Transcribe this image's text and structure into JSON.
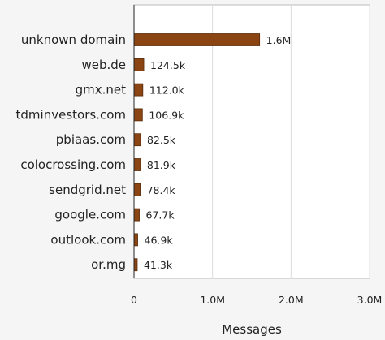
{
  "chart_data": {
    "type": "bar",
    "orientation": "horizontal",
    "title": "",
    "xlabel": "Messages",
    "ylabel": "",
    "categories": [
      "unknown domain",
      "web.de",
      "gmx.net",
      "tdminvestors.com",
      "pbiaas.com",
      "colocrossing.com",
      "sendgrid.net",
      "google.com",
      "outlook.com",
      "or.mg"
    ],
    "values": [
      1600000,
      124500,
      112000,
      106900,
      82500,
      81900,
      78400,
      67700,
      46900,
      41300
    ],
    "value_labels": [
      "1.6M",
      "124.5k",
      "112.0k",
      "106.9k",
      "82.5k",
      "81.9k",
      "78.4k",
      "67.7k",
      "46.9k",
      "41.3k"
    ],
    "xlim": [
      0,
      3000000
    ],
    "xticks": [
      0,
      1000000,
      2000000,
      3000000
    ],
    "xtick_labels": [
      "0",
      "1.0M",
      "2.0M",
      "3.0M"
    ],
    "grid": true,
    "bar_color": "#8b4513",
    "bar_edge_color": "#5a2d0c",
    "grid_color": "#dddddd",
    "plot_background": "#ffffff"
  }
}
